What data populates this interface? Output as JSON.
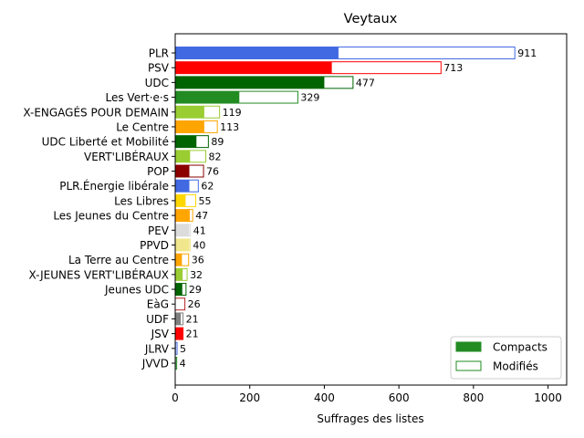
{
  "chart_data": {
    "type": "bar",
    "orientation": "horizontal",
    "stacked": true,
    "title": "Veytaux",
    "xlabel": "Suffrages des listes",
    "ylabel": "",
    "xlim": [
      0,
      1050
    ],
    "xticks": [
      0,
      200,
      400,
      600,
      800,
      1000
    ],
    "grid": false,
    "legend_position": "lower right",
    "series": [
      {
        "name": "Compacts",
        "style": "filled",
        "legend_color": "#228b22"
      },
      {
        "name": "Modifiés",
        "style": "outline",
        "legend_color": "#228b22"
      }
    ],
    "categories": [
      {
        "label": "PLR",
        "compacts": 438,
        "total": 911,
        "color": "#4169e1"
      },
      {
        "label": "PSV",
        "compacts": 420,
        "total": 713,
        "color": "#ff0000"
      },
      {
        "label": "UDC",
        "compacts": 400,
        "total": 477,
        "color": "#006400"
      },
      {
        "label": "Les Vert·e·s",
        "compacts": 172,
        "total": 329,
        "color": "#228b22"
      },
      {
        "label": "X-ENGAGÉS POUR DEMAIN",
        "compacts": 78,
        "total": 119,
        "color": "#9acd32"
      },
      {
        "label": "Le Centre",
        "compacts": 78,
        "total": 113,
        "color": "#ffa500"
      },
      {
        "label": "UDC Liberté et Mobilité",
        "compacts": 57,
        "total": 89,
        "color": "#006400"
      },
      {
        "label": "VERT'LIBÉRAUX",
        "compacts": 40,
        "total": 82,
        "color": "#9acd32"
      },
      {
        "label": "POP",
        "compacts": 38,
        "total": 76,
        "color": "#8b0000"
      },
      {
        "label": "PLR.Énergie libérale",
        "compacts": 38,
        "total": 62,
        "color": "#4169e1"
      },
      {
        "label": "Les Libres",
        "compacts": 28,
        "total": 55,
        "color": "#ffd700"
      },
      {
        "label": "Les Jeunes du Centre",
        "compacts": 39,
        "total": 47,
        "color": "#ffa500"
      },
      {
        "label": "PEV",
        "compacts": 38,
        "total": 41,
        "color": "#dcdcdc"
      },
      {
        "label": "PPVD",
        "compacts": 38,
        "total": 40,
        "color": "#f0e68c"
      },
      {
        "label": "La Terre au Centre",
        "compacts": 18,
        "total": 36,
        "color": "#ffa500"
      },
      {
        "label": "X-JEUNES VERT'LIBÉRAUX",
        "compacts": 20,
        "total": 32,
        "color": "#9acd32"
      },
      {
        "label": "Jeunes UDC",
        "compacts": 19,
        "total": 29,
        "color": "#006400"
      },
      {
        "label": "EàG",
        "compacts": 0,
        "total": 26,
        "color": "#b22222"
      },
      {
        "label": "UDF",
        "compacts": 15,
        "total": 21,
        "color": "#808080"
      },
      {
        "label": "JSV",
        "compacts": 21,
        "total": 21,
        "color": "#ff0000"
      },
      {
        "label": "JLRV",
        "compacts": 2,
        "total": 5,
        "color": "#4169e1"
      },
      {
        "label": "JVVD",
        "compacts": 2,
        "total": 4,
        "color": "#228b22"
      }
    ]
  }
}
